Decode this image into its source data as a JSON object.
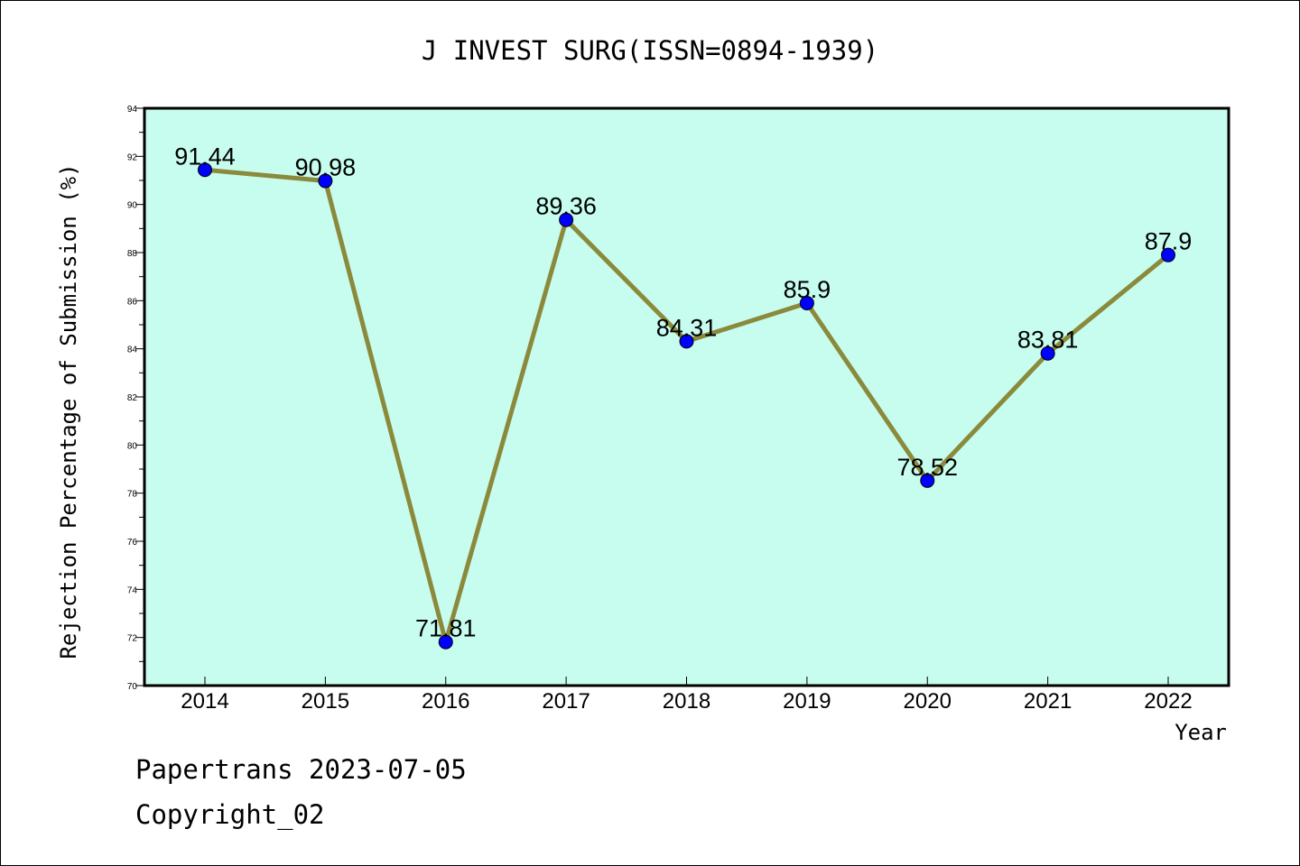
{
  "footer": {
    "line1": "Papertrans 2023-07-05",
    "line2": "Copyright_02"
  },
  "chart_data": {
    "type": "line",
    "title": "J INVEST SURG(ISSN=0894-1939)",
    "xlabel": "Year",
    "ylabel": "Rejection Percentage of Submission (%)",
    "categories": [
      "2014",
      "2015",
      "2016",
      "2017",
      "2018",
      "2019",
      "2020",
      "2021",
      "2022"
    ],
    "values": [
      91.44,
      90.98,
      71.81,
      89.36,
      84.31,
      85.9,
      78.52,
      83.81,
      87.9
    ],
    "data_labels": [
      "91.44",
      "90.98",
      "71.81",
      "89.36",
      "84.31",
      "85.9",
      "78.52",
      "83.81",
      "87.9"
    ],
    "ylim": [
      70,
      94
    ],
    "yticks": [
      70,
      72,
      74,
      76,
      78,
      80,
      82,
      84,
      86,
      88,
      90,
      92,
      94
    ],
    "grid": false,
    "colors": {
      "plot_background": "#c7fdee",
      "line": "#8b8a3c",
      "marker": "#0000ff"
    }
  }
}
